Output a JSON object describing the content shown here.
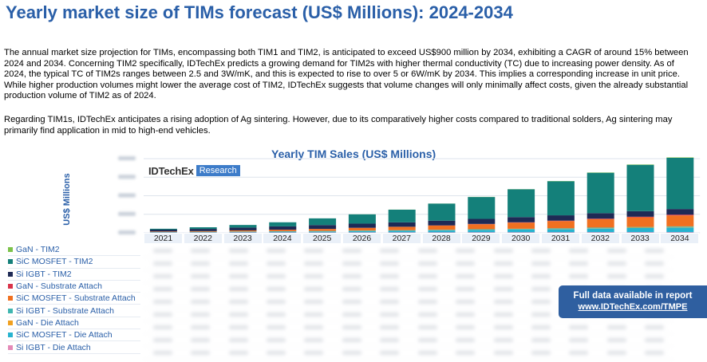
{
  "page": {
    "title": "Yearly market size of TIMs forecast (US$ Millions): 2024-2034",
    "paragraph1": "The annual market size projection for TIMs, encompassing both TIM1 and TIM2, is anticipated to exceed US$900 million by 2034, exhibiting a CAGR of around 15% between 2024 and 2034. Concerning TIM2 specifically, IDTechEx predicts a growing demand for TIM2s with higher thermal conductivity (TC) due to increasing power density. As of 2024, the typical TC of TIM2s ranges between 2.5 and 3W/mK, and this is expected to rise to over 5 or 6W/mK by 2034. This implies a corresponding increase in unit price. While higher production volumes might lower the average cost of TIM2, IDTechEx suggests that volume changes will only minimally affect costs, given the already substantial production volume of TIM2 as of 2024.",
    "paragraph2": "Regarding TIM1s, IDTechEx anticipates a rising adoption of Ag sintering. However, due to its comparatively higher costs compared to traditional solders, Ag sintering may primarily find application in mid to high-end vehicles."
  },
  "logo": {
    "brand": "IDTechEx",
    "tag": "Research"
  },
  "banner": {
    "line1": "Full data available in report",
    "line2": "www.IDTechEx.com/TMPE"
  },
  "chart_data": {
    "type": "bar",
    "stacked": true,
    "title": "Yearly TIM Sales (US$ Millions)",
    "ylabel": "US$ Millions",
    "xlabel": "",
    "categories": [
      "2021",
      "2022",
      "2023",
      "2024",
      "2025",
      "2026",
      "2027",
      "2028",
      "2029",
      "2030",
      "2031",
      "2032",
      "2033",
      "2034"
    ],
    "ylim": [
      0,
      1000
    ],
    "y_ticks_blurred": true,
    "grid": true,
    "legend_position": "bottom-left table",
    "series": [
      {
        "name": "Si IGBT - Die Attach",
        "color": "#e48ab8",
        "values": [
          4,
          4,
          5,
          5,
          5,
          6,
          6,
          6,
          7,
          7,
          7,
          8,
          8,
          8
        ]
      },
      {
        "name": "SiC MOSFET - Die Attach",
        "color": "#27b3cf",
        "values": [
          3,
          5,
          7,
          10,
          13,
          17,
          21,
          26,
          31,
          37,
          43,
          50,
          57,
          64
        ]
      },
      {
        "name": "GaN - Die Attach",
        "color": "#f0a020",
        "values": [
          0,
          0,
          0,
          0,
          1,
          1,
          1,
          2,
          2,
          3,
          3,
          4,
          5,
          6
        ]
      },
      {
        "name": "Si IGBT - Substrate Attach",
        "color": "#3fb6b0",
        "values": [
          5,
          5,
          6,
          6,
          6,
          7,
          7,
          7,
          8,
          8,
          8,
          9,
          9,
          9
        ]
      },
      {
        "name": "SiC MOSFET - Substrate Attach",
        "color": "#f07020",
        "values": [
          6,
          9,
          14,
          20,
          27,
          35,
          45,
          56,
          68,
          82,
          97,
          113,
          130,
          148
        ]
      },
      {
        "name": "GaN - Substrate Attach",
        "color": "#d9334a",
        "values": [
          0,
          0,
          1,
          1,
          1,
          2,
          2,
          3,
          4,
          5,
          6,
          7,
          8,
          10
        ]
      },
      {
        "name": "Si IGBT - TIM2",
        "color": "#1e2a55",
        "values": [
          25,
          30,
          38,
          45,
          52,
          56,
          60,
          64,
          68,
          70,
          72,
          74,
          75,
          76
        ]
      },
      {
        "name": "SiC MOSFET - TIM2",
        "color": "#14807a",
        "values": [
          12,
          22,
          35,
          55,
          90,
          125,
          170,
          230,
          295,
          375,
          460,
          545,
          625,
          690
        ]
      },
      {
        "name": "GaN - TIM2",
        "color": "#7cc24a",
        "values": [
          0,
          0,
          0,
          0,
          0,
          1,
          1,
          1,
          2,
          2,
          3,
          4,
          5,
          6
        ]
      }
    ]
  }
}
